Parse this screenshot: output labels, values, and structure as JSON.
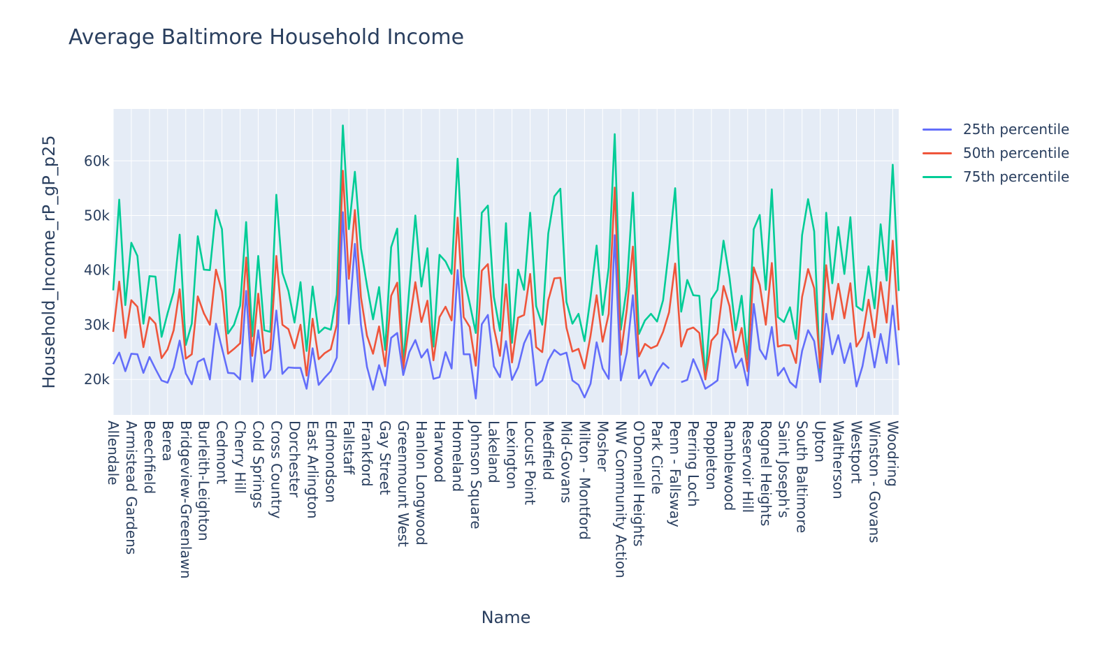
{
  "chart_data": {
    "type": "line",
    "title": "Average Baltimore Household Income",
    "xlabel": "Name",
    "ylabel": "Household_Income_rP_gP_p25",
    "ylim": [
      13500,
      69500
    ],
    "yticks": [
      20000,
      30000,
      40000,
      50000,
      60000
    ],
    "ytick_labels": [
      "20k",
      "30k",
      "40k",
      "50k",
      "60k"
    ],
    "grid": true,
    "legend_position": "top-right",
    "x_tick_labels": [
      "Allendale",
      "Armistead Gardens",
      "Beechfield",
      "Berea",
      "Bridgeview-Greenlawn",
      "Burleith-Leighton",
      "Cedmont",
      "Cherry Hill",
      "Cold Springs",
      "Cross Country",
      "Dorchester",
      "East Arlington",
      "Edmondson",
      "Fallstaff",
      "Frankford",
      "Gay Street",
      "Greenmount West",
      "Hanlon Longwood",
      "Harwood",
      "Homeland",
      "Johnson Square",
      "Lakeland",
      "Lexington",
      "Locust Point",
      "Medfield",
      "Mid-Govans",
      "Milton - Montford",
      "Mosher",
      "NW Community Action",
      "O'Donnell Heights",
      "Park Circle",
      "Penn - Fallsway",
      "Perring Loch",
      "Poppleton",
      "Ramblewood",
      "Reservoir Hill",
      "Rognel Heights",
      "Saint Joseph's",
      "South Baltimore",
      "Upton",
      "Waltherson",
      "Westport",
      "Winston - Govans",
      "Woodring"
    ],
    "series": [
      {
        "name": "25th percentile",
        "color": "#636efa",
        "values": [
          22800,
          24900,
          21500,
          24700,
          24600,
          21200,
          24100,
          21900,
          19800,
          19400,
          22200,
          27100,
          21100,
          19100,
          23200,
          23800,
          20000,
          30200,
          25700,
          21200,
          21100,
          20000,
          36200,
          19600,
          29000,
          20300,
          21800,
          32600,
          21000,
          22200,
          22100,
          22100,
          18300,
          25700,
          19000,
          20300,
          21500,
          24000,
          50600,
          30200,
          44800,
          30000,
          22300,
          18100,
          22600,
          18900,
          27600,
          28500,
          20800,
          25000,
          27200,
          24000,
          25500,
          20100,
          20400,
          25000,
          22000,
          40000,
          24600,
          24600,
          16500,
          30100,
          31800,
          22400,
          20400,
          27000,
          19900,
          22200,
          26600,
          29000,
          18900,
          19800,
          23500,
          25400,
          24500,
          24900,
          19800,
          19000,
          16700,
          19200,
          26800,
          22000,
          20100,
          46400,
          19800,
          24900,
          35400,
          20200,
          21700,
          18900,
          21300,
          23000,
          22000,
          null,
          19500,
          19900,
          23700,
          21200,
          18300,
          19000,
          19800,
          29200,
          27000,
          22100,
          23800,
          18900,
          33800,
          25500,
          23700,
          29600,
          20700,
          22100,
          19500,
          18500,
          25200,
          29000,
          27000,
          19500,
          32000,
          24600,
          28100,
          23000,
          26600,
          18700,
          22400,
          28600,
          22200,
          28300,
          23000,
          33500,
          22600
        ]
      },
      {
        "name": "50th percentile",
        "color": "#ef553b",
        "values": [
          28700,
          37900,
          27600,
          34500,
          33300,
          25900,
          31400,
          30200,
          23900,
          25500,
          29000,
          36500,
          23800,
          24600,
          35200,
          32100,
          30000,
          40100,
          36100,
          24700,
          25600,
          26600,
          42300,
          24300,
          35700,
          24800,
          25500,
          42600,
          30000,
          29200,
          25700,
          30000,
          20700,
          31100,
          23700,
          24800,
          25500,
          30000,
          58200,
          38400,
          51000,
          35000,
          28000,
          24700,
          29700,
          22400,
          35300,
          37700,
          21900,
          30300,
          37800,
          30500,
          34400,
          23500,
          31400,
          33300,
          30800,
          49600,
          31400,
          29600,
          22500,
          39900,
          41100,
          29400,
          24300,
          37400,
          23100,
          31300,
          31800,
          39300,
          25900,
          25000,
          34500,
          38500,
          38600,
          29500,
          25100,
          25600,
          22000,
          28000,
          35400,
          26900,
          32000,
          55100,
          24500,
          32800,
          44300,
          24200,
          26500,
          25700,
          26200,
          28700,
          32300,
          41200,
          26000,
          29100,
          29500,
          28500,
          20000,
          27100,
          28400,
          37100,
          33400,
          25000,
          29400,
          21500,
          40500,
          37300,
          30000,
          41300,
          26000,
          26300,
          26200,
          23000,
          35100,
          40200,
          36700,
          22100,
          40900,
          31000,
          37500,
          31200,
          37600,
          26000,
          27800,
          34600,
          27700,
          37800,
          30400,
          45400,
          29000
        ]
      },
      {
        "name": "75th percentile",
        "color": "#00cc96",
        "values": [
          36300,
          52900,
          33600,
          45000,
          42600,
          30200,
          38900,
          38800,
          27800,
          32100,
          36000,
          46500,
          26300,
          30200,
          46200,
          40100,
          40000,
          51000,
          47500,
          28400,
          30000,
          33500,
          48800,
          27900,
          42600,
          29000,
          28700,
          53800,
          39500,
          36200,
          30400,
          37800,
          25200,
          37000,
          28500,
          29500,
          29100,
          35500,
          66500,
          47500,
          58000,
          44000,
          37200,
          31000,
          36900,
          25400,
          44200,
          47600,
          22700,
          36700,
          50000,
          37000,
          44000,
          26000,
          42800,
          41600,
          39300,
          60400,
          38900,
          33900,
          28500,
          50500,
          51800,
          35100,
          28900,
          48600,
          26700,
          40100,
          36400,
          50500,
          33400,
          30000,
          46700,
          53500,
          54900,
          34200,
          30200,
          32000,
          27000,
          35000,
          44500,
          31800,
          40500,
          64900,
          29100,
          36900,
          54200,
          28300,
          30800,
          32000,
          30600,
          34500,
          44000,
          55000,
          32400,
          38200,
          35400,
          35300,
          20400,
          34700,
          36400,
          45400,
          38600,
          29000,
          35300,
          23600,
          47500,
          50100,
          36400,
          54800,
          31400,
          30500,
          33200,
          27400,
          46400,
          53000,
          47100,
          20600,
          50500,
          37600,
          47900,
          39300,
          49700,
          33400,
          32600,
          40700,
          33000,
          48400,
          38100,
          59300,
          36200
        ]
      }
    ]
  }
}
